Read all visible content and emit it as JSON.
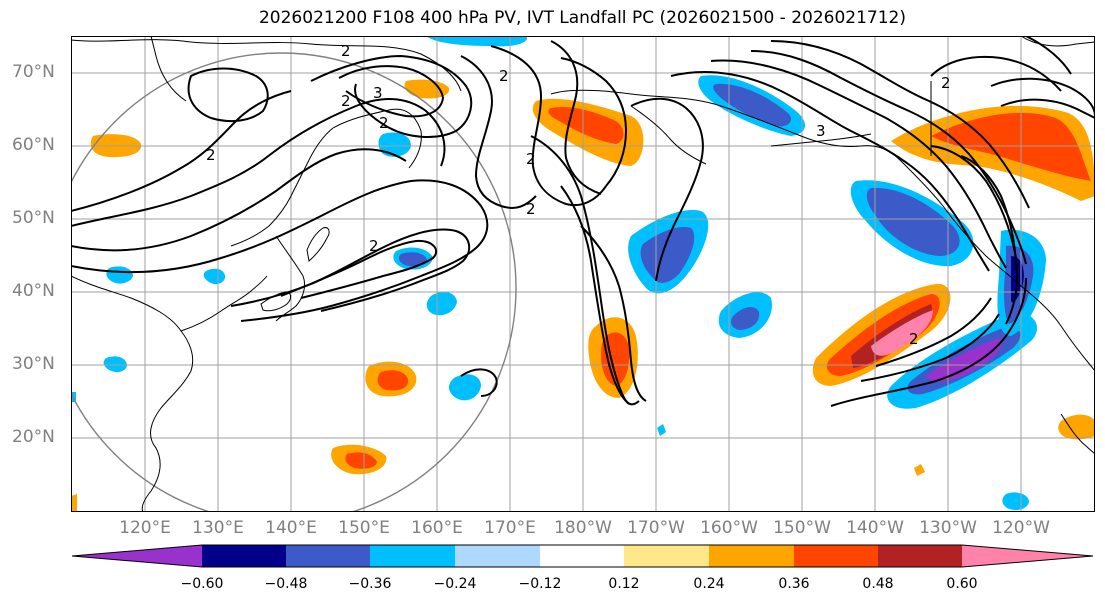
{
  "title": "2026021200 F108 400 hPa PV, IVT Landfall PC (2026021500 - 2026021712)",
  "lat_labels": [
    "70°N",
    "60°N",
    "50°N",
    "40°N",
    "30°N",
    "20°N"
  ],
  "lon_labels": [
    "120°E",
    "130°E",
    "140°E",
    "150°E",
    "160°E",
    "170°E",
    "180°W",
    "170°W",
    "160°W",
    "150°W",
    "140°W",
    "130°W",
    "120°W"
  ],
  "colorbar": {
    "colors": [
      "#9932CC",
      "#00008B",
      "#3C5AC8",
      "#00BFFF",
      "#ADD8FF",
      "#FFFFFF",
      "#FFE88A",
      "#FFA500",
      "#FF4500",
      "#B22222",
      "#FF82AB"
    ],
    "tick_labels": [
      "−0.60",
      "−0.48",
      "−0.36",
      "−0.24",
      "−0.12",
      "0.12",
      "0.24",
      "0.36",
      "0.48",
      "0.60"
    ]
  },
  "contour_labels": [
    "2",
    "3",
    "2",
    "2",
    "2",
    "2",
    "2",
    "2",
    "2",
    "3",
    "2",
    "2"
  ]
}
